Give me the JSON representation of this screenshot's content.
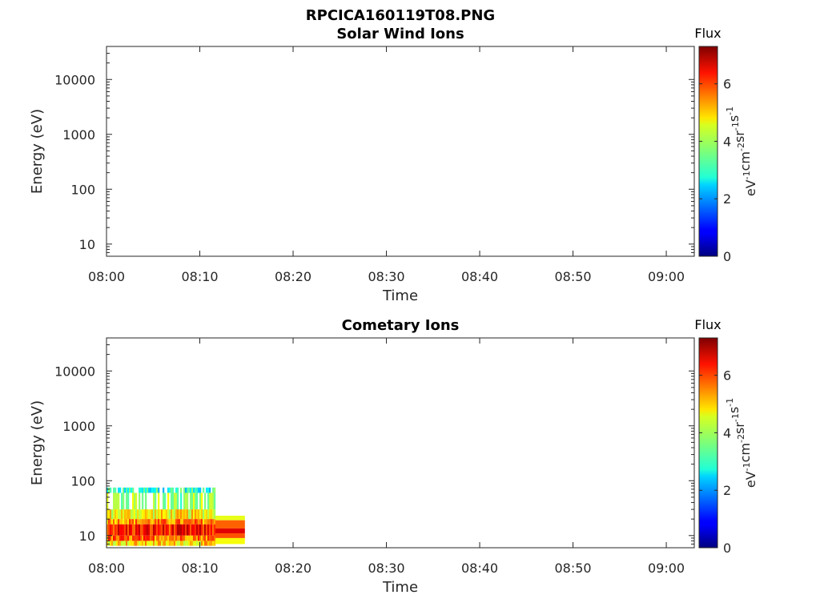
{
  "figure": {
    "filename_title": "RPCICA160119T08.PNG"
  },
  "colormap": "jet",
  "chart_data": [
    {
      "type": "heatmap",
      "title": "Solar Wind Ions",
      "xlabel": "Time",
      "ylabel": "Energy (eV)",
      "y_scale": "log",
      "xlim": [
        "08:00",
        "09:03"
      ],
      "ylim": [
        6,
        40000
      ],
      "x_ticks": [
        "08:00",
        "08:10",
        "08:20",
        "08:30",
        "08:40",
        "08:50",
        "09:00"
      ],
      "y_ticks": [
        {
          "value": 10,
          "label": "10"
        },
        {
          "value": 100,
          "label": "100"
        },
        {
          "value": 1000,
          "label": "1000"
        },
        {
          "value": 10000,
          "label": "10000"
        }
      ],
      "colorbar": {
        "title": "Flux",
        "label": "eV-1cm-2sr-1s-1",
        "range": [
          0,
          7.3
        ],
        "ticks": [
          0,
          2,
          4,
          6
        ]
      },
      "blocks": []
    },
    {
      "type": "heatmap",
      "title": "Cometary Ions",
      "xlabel": "Time",
      "ylabel": "Energy (eV)",
      "y_scale": "log",
      "xlim": [
        "08:00",
        "09:03"
      ],
      "ylim": [
        6,
        40000
      ],
      "x_ticks": [
        "08:00",
        "08:10",
        "08:20",
        "08:30",
        "08:40",
        "08:50",
        "09:00"
      ],
      "y_ticks": [
        {
          "value": 10,
          "label": "10"
        },
        {
          "value": 100,
          "label": "100"
        },
        {
          "value": 1000,
          "label": "1000"
        },
        {
          "value": 10000,
          "label": "10000"
        }
      ],
      "colorbar": {
        "title": "Flux",
        "label": "eV-1cm-2sr-1s-1",
        "range": [
          0,
          7.3
        ],
        "ticks": [
          0,
          2,
          4,
          6
        ]
      },
      "blocks": [
        {
          "t_start": "08:00",
          "t_end": "08:11:40",
          "e_low": 60,
          "e_high": 75,
          "flux": 3.0,
          "speckle": true
        },
        {
          "t_start": "08:00",
          "t_end": "08:11:40",
          "e_low": 30,
          "e_high": 60,
          "flux": 3.8,
          "speckle": true
        },
        {
          "t_start": "08:00",
          "t_end": "08:11:40",
          "e_low": 20,
          "e_high": 30,
          "flux": 4.6,
          "speckle": true
        },
        {
          "t_start": "08:00",
          "t_end": "08:11:40",
          "e_low": 16,
          "e_high": 20,
          "flux": 5.4,
          "speckle": true
        },
        {
          "t_start": "08:00",
          "t_end": "08:11:40",
          "e_low": 10,
          "e_high": 16,
          "flux": 6.2,
          "speckle": true
        },
        {
          "t_start": "08:00",
          "t_end": "08:11:40",
          "e_low": 8,
          "e_high": 10,
          "flux": 5.6,
          "speckle": true
        },
        {
          "t_start": "08:00",
          "t_end": "08:11:40",
          "e_low": 6.5,
          "e_high": 8,
          "flux": 4.8,
          "speckle": true
        },
        {
          "t_start": "08:11:40",
          "t_end": "08:14:50",
          "e_low": 19,
          "e_high": 23,
          "flux": 4.4,
          "speckle": false
        },
        {
          "t_start": "08:11:40",
          "t_end": "08:14:50",
          "e_low": 13.5,
          "e_high": 19,
          "flux": 5.7,
          "speckle": false
        },
        {
          "t_start": "08:11:40",
          "t_end": "08:14:50",
          "e_low": 11,
          "e_high": 13.5,
          "flux": 6.6,
          "speckle": false
        },
        {
          "t_start": "08:11:40",
          "t_end": "08:14:50",
          "e_low": 9,
          "e_high": 11,
          "flux": 5.8,
          "speckle": false
        },
        {
          "t_start": "08:11:40",
          "t_end": "08:14:50",
          "e_low": 7,
          "e_high": 9,
          "flux": 4.5,
          "speckle": false
        }
      ]
    }
  ]
}
